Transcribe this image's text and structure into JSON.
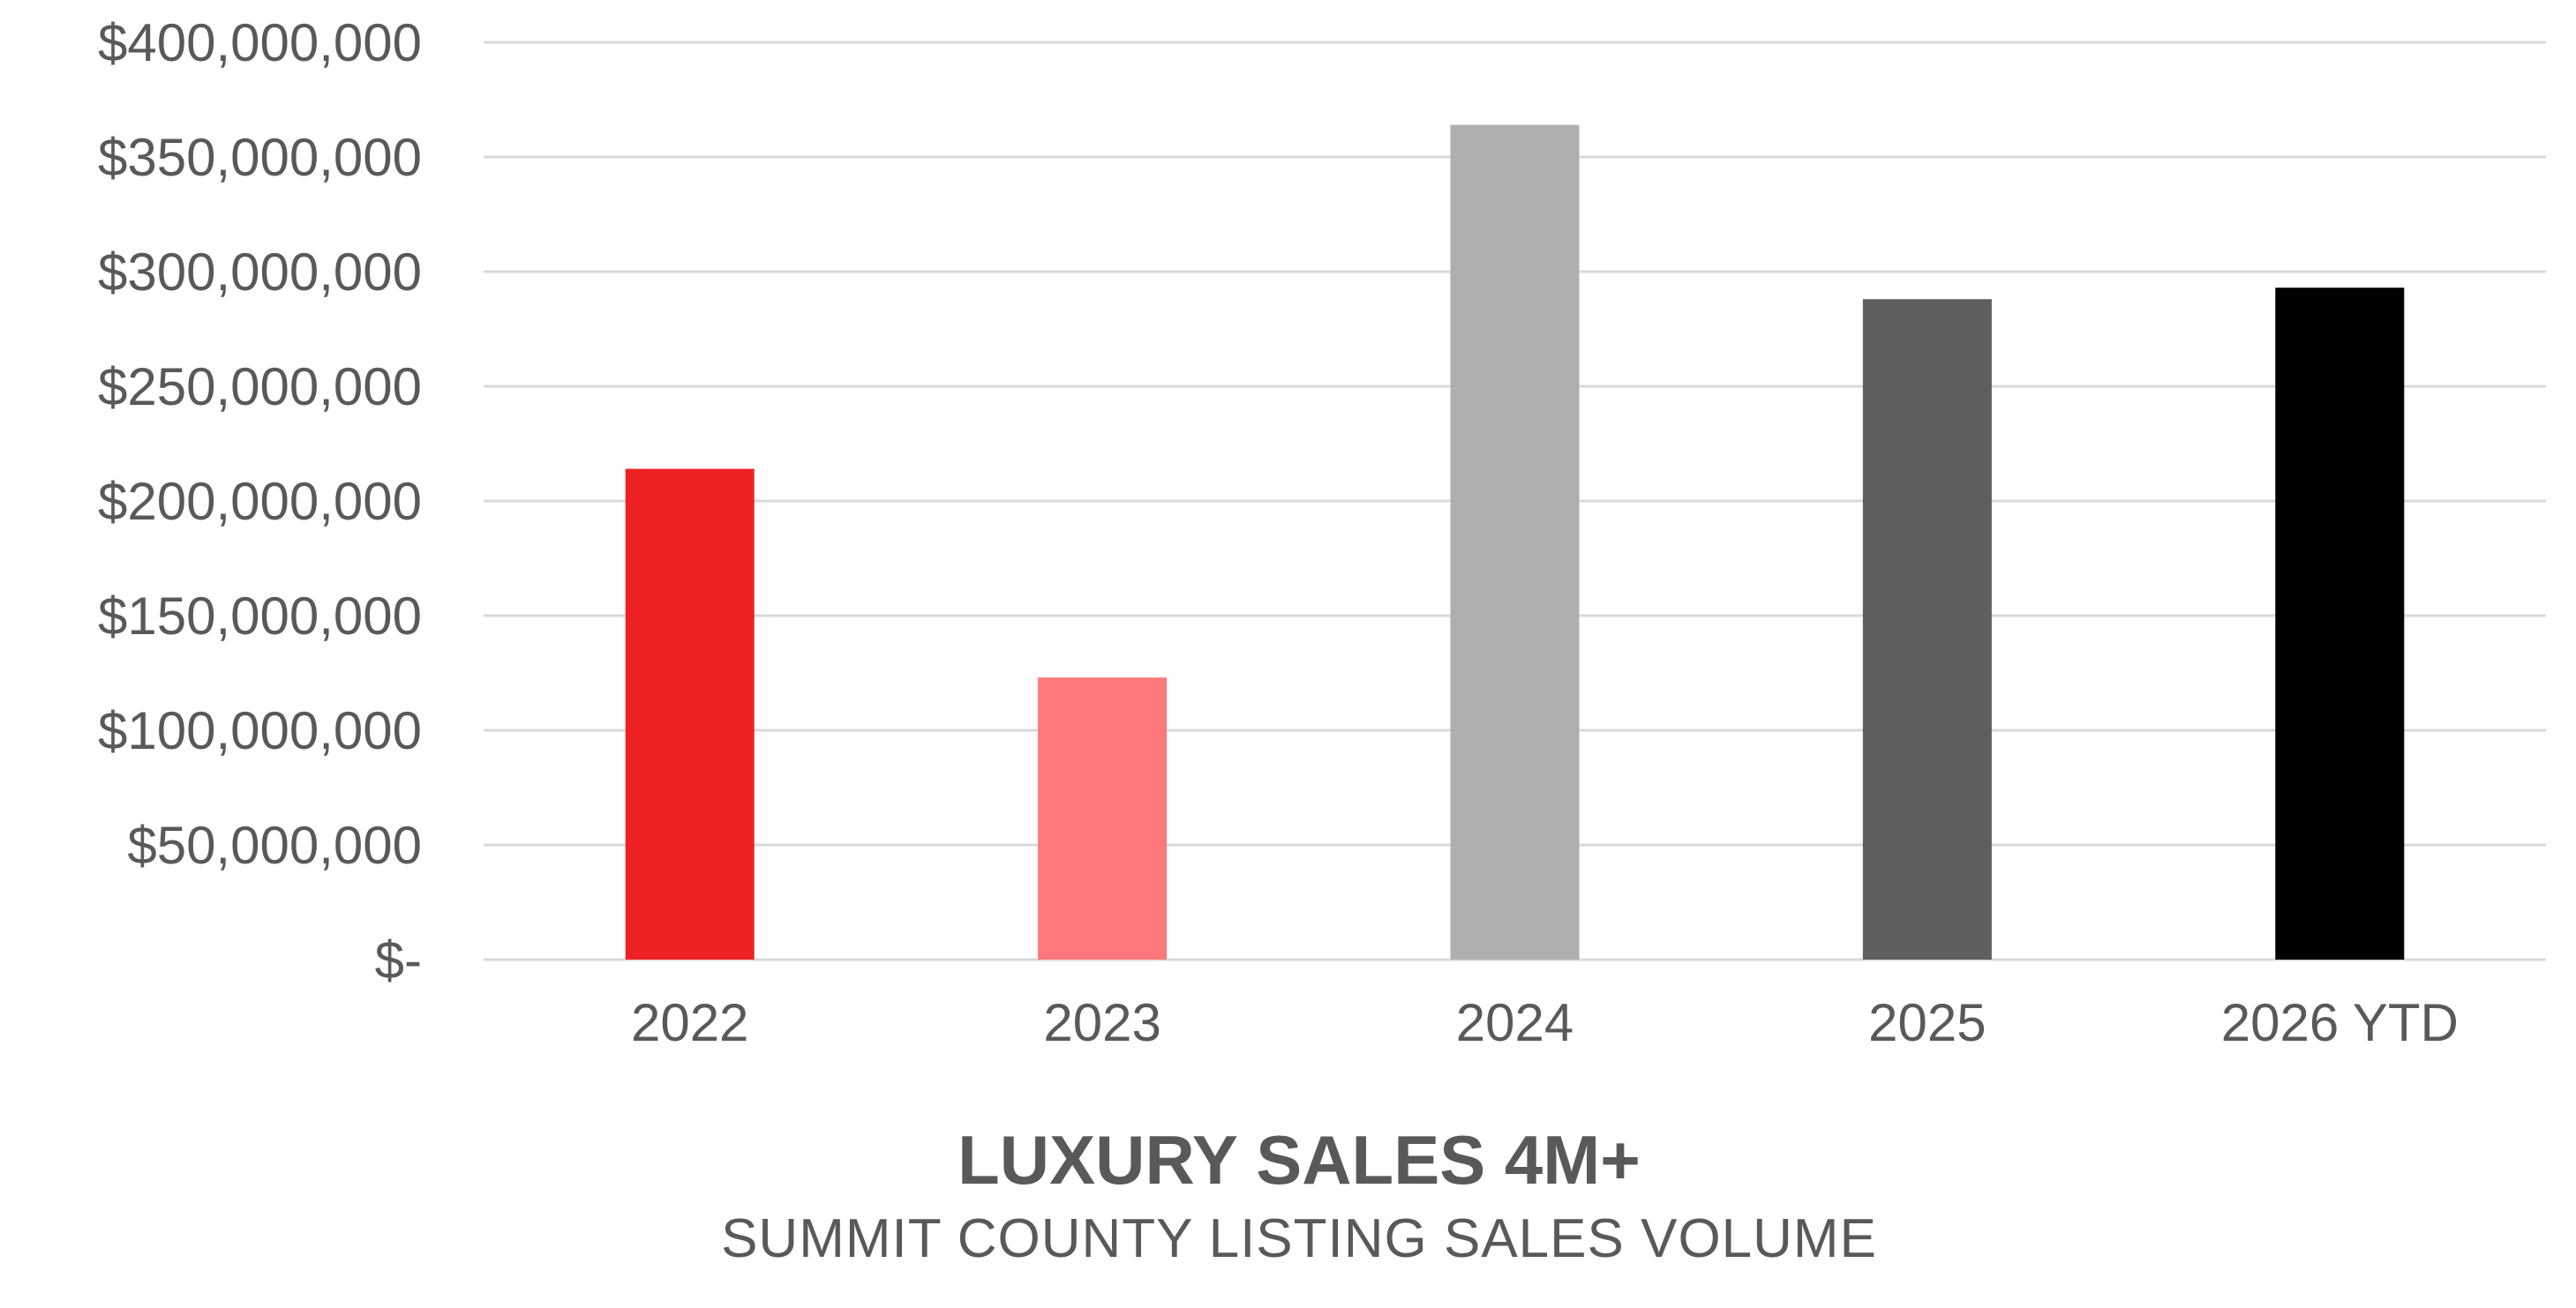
{
  "chart_data": {
    "type": "bar",
    "title": "LUXURY SALES 4M+",
    "subtitle": "SUMMIT COUNTY LISTING SALES VOLUME",
    "xlabel": "",
    "ylabel": "",
    "categories": [
      "2022",
      "2023",
      "2024",
      "2025",
      "2026 YTD"
    ],
    "values": [
      214000000,
      123000000,
      364000000,
      288000000,
      293000000
    ],
    "bar_colors": [
      "#ed2024",
      "#ff787c",
      "#afafaf",
      "#5e5e5e",
      "#000000"
    ],
    "ylim": [
      0,
      400000000
    ],
    "y_ticks": [
      0,
      50000000,
      100000000,
      150000000,
      200000000,
      250000000,
      300000000,
      350000000,
      400000000
    ],
    "y_tick_labels": [
      "$-",
      "$50,000,000",
      "$100,000,000",
      "$150,000,000",
      "$200,000,000",
      "$250,000,000",
      "$300,000,000",
      "$350,000,000",
      "$400,000,000"
    ],
    "grid": true,
    "legend": "none"
  }
}
